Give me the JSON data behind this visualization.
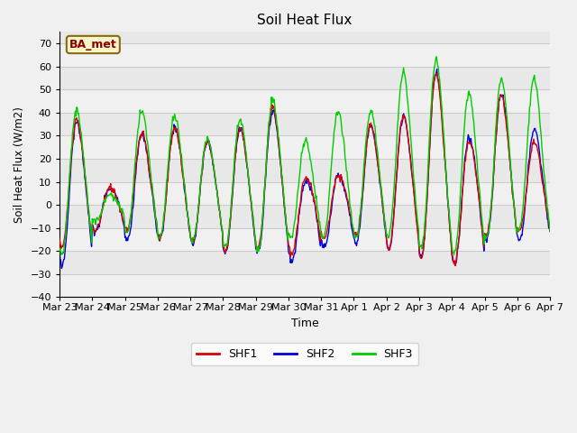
{
  "title": "Soil Heat Flux",
  "xlabel": "Time",
  "ylabel": "Soil Heat Flux (W/m2)",
  "ylim": [
    -40,
    75
  ],
  "yticks": [
    -40,
    -30,
    -20,
    -10,
    0,
    10,
    20,
    30,
    40,
    50,
    60,
    70
  ],
  "xlim": [
    0,
    360
  ],
  "xtick_labels": [
    "Mar 23",
    "Mar 24",
    "Mar 25",
    "Mar 26",
    "Mar 27",
    "Mar 28",
    "Mar 29",
    "Mar 30",
    "Mar 31",
    "Apr 1",
    "Apr 2",
    "Apr 3",
    "Apr 4",
    "Apr 5",
    "Apr 6",
    "Apr 7"
  ],
  "xtick_positions": [
    0,
    24,
    48,
    72,
    96,
    120,
    144,
    168,
    192,
    216,
    240,
    264,
    288,
    312,
    336,
    360
  ],
  "legend_labels": [
    "SHF1",
    "SHF2",
    "SHF3"
  ],
  "line_colors": [
    "#dd0000",
    "#0000dd",
    "#00cc00"
  ],
  "annotation_text": "BA_met",
  "plot_bg_color": "#e8e8e8",
  "stripe_color": "#d8d8d8",
  "white_stripe": "#f0f0f0",
  "grid_color": "#cccccc",
  "line_width": 1.0,
  "figsize": [
    6.4,
    4.8
  ],
  "dpi": 100
}
